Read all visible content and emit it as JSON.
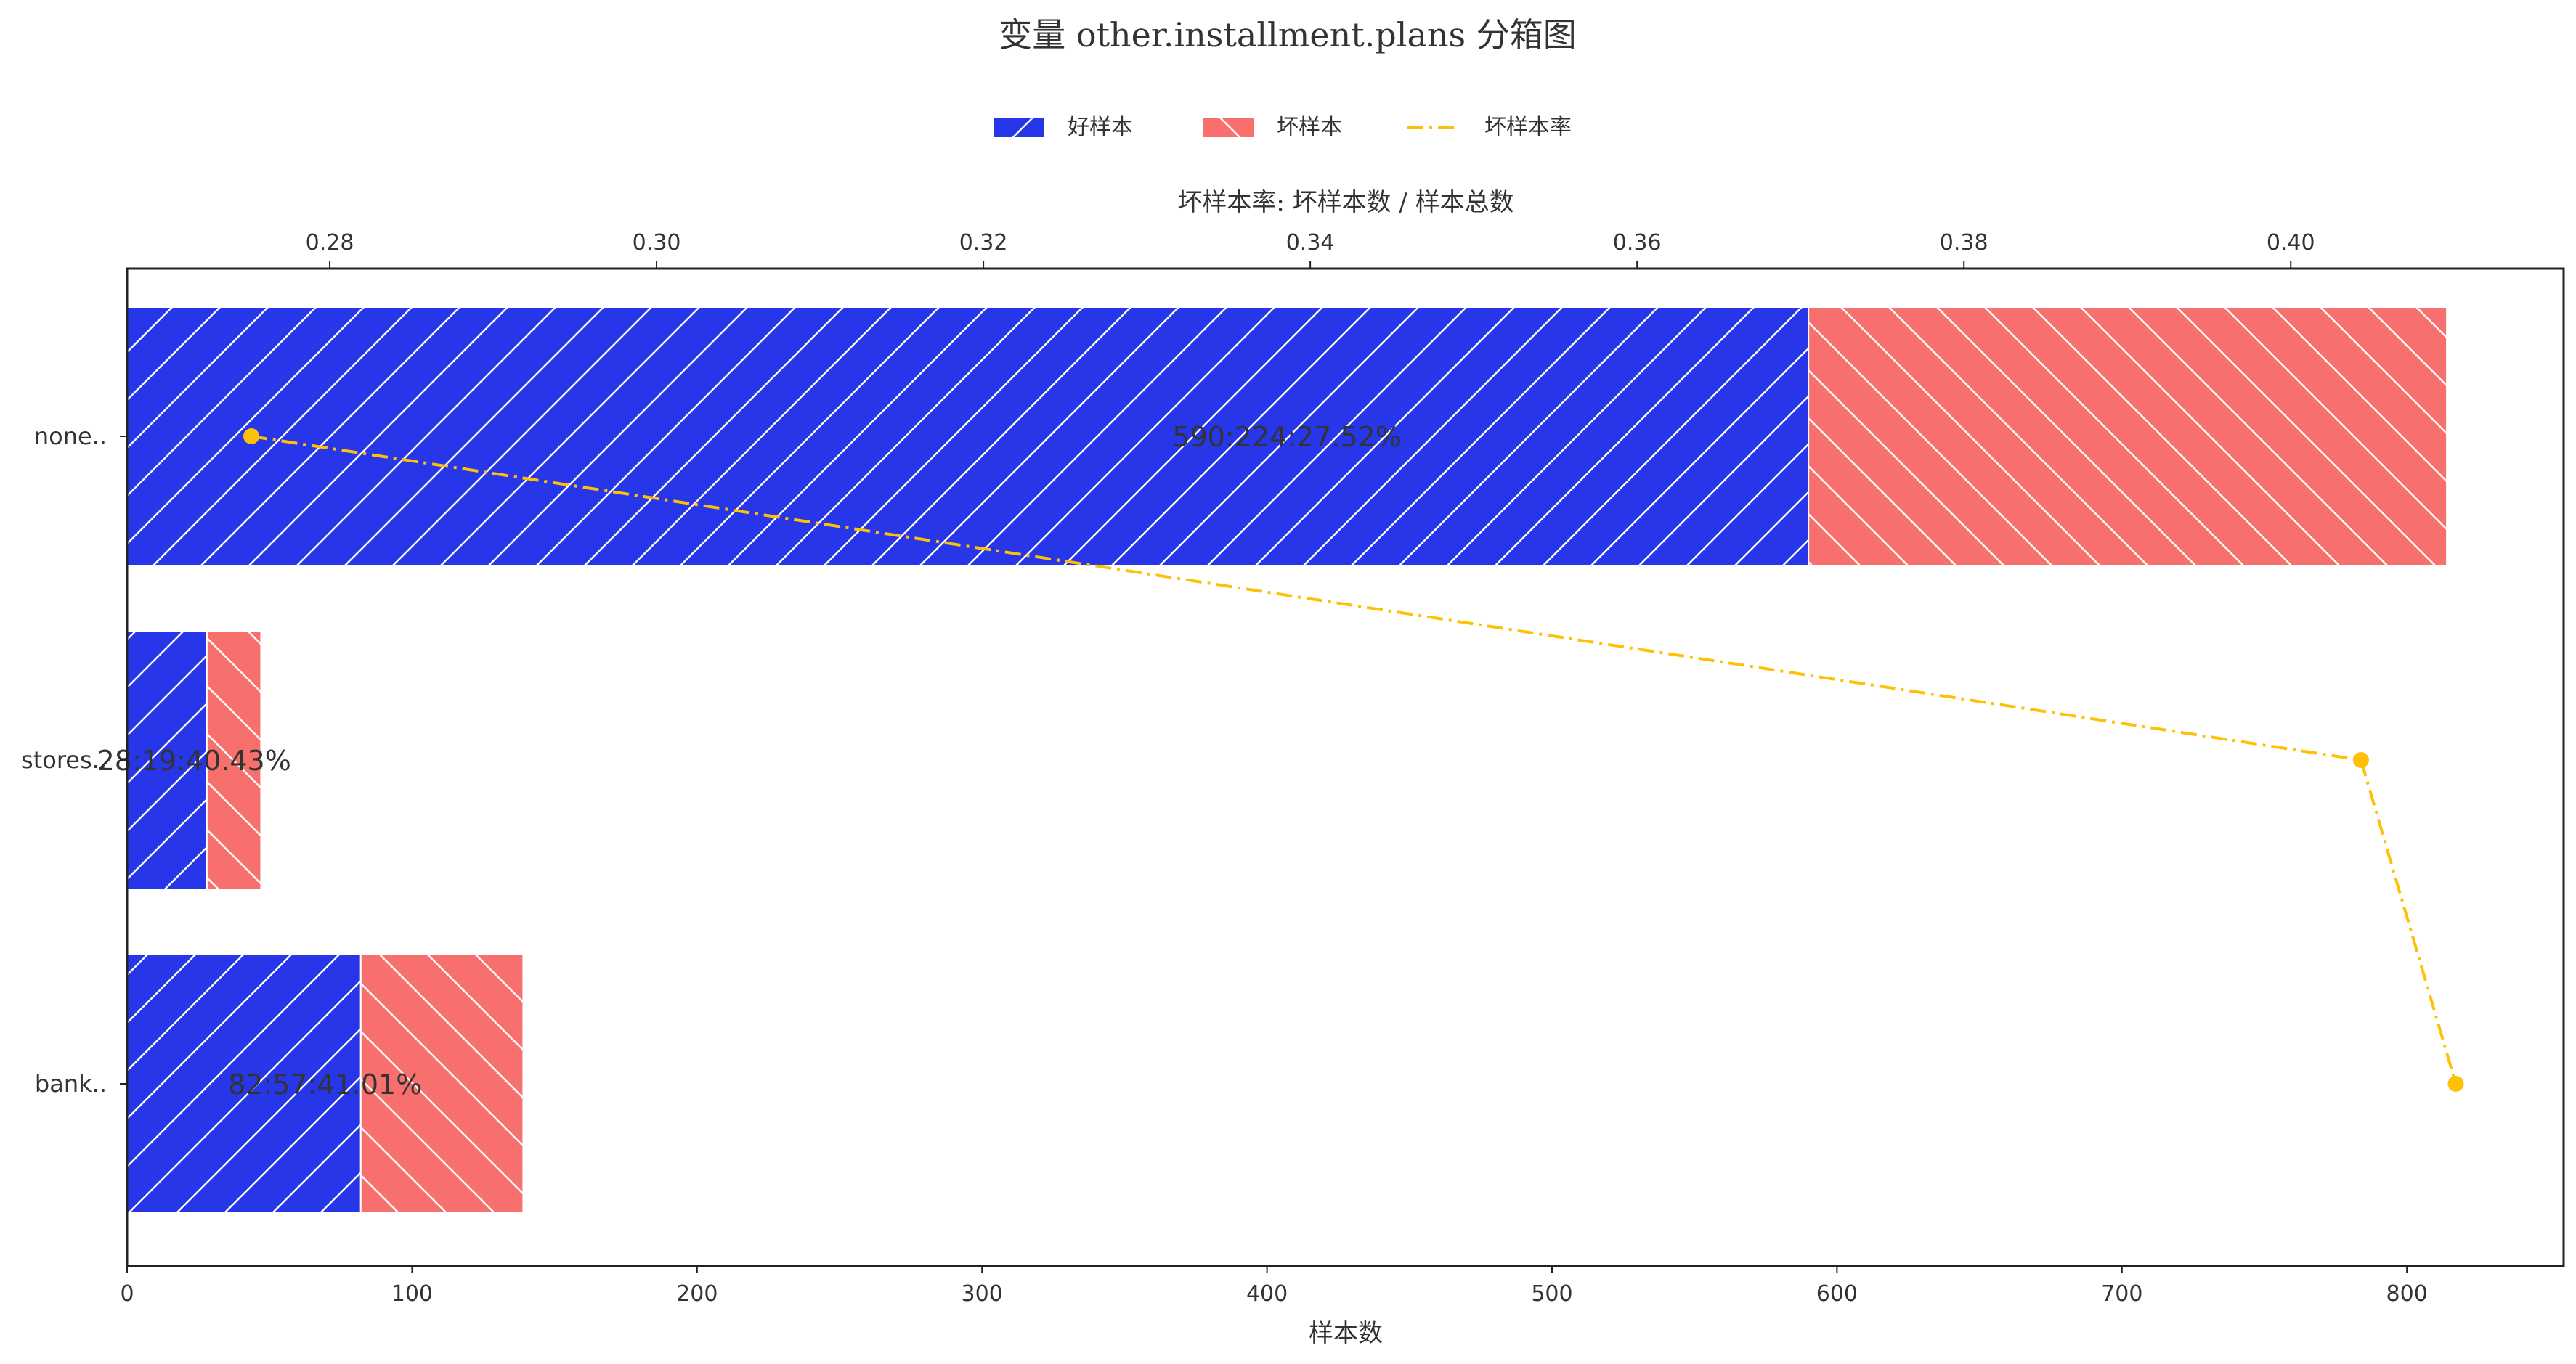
{
  "chart_data": {
    "type": "bar",
    "orientation": "horizontal",
    "stacked": true,
    "title": "变量 other.installment.plans 分箱图",
    "xlabel": "样本数",
    "top_xlabel": "坏样本率: 坏样本数 / 样本总数",
    "categories": [
      "none..",
      "stores..",
      "bank.."
    ],
    "series": [
      {
        "name": "好样本",
        "values": [
          590,
          28,
          82
        ],
        "color": "#2736e8",
        "hatch": "/"
      },
      {
        "name": "坏样本",
        "values": [
          224,
          19,
          57
        ],
        "color": "#f8706e",
        "hatch": "\\"
      }
    ],
    "rate_series": {
      "name": "坏样本率",
      "values": [
        0.2752,
        0.4043,
        0.4101
      ],
      "color": "#ffc107",
      "line_style": "dash-dot"
    },
    "bar_labels": [
      "590:224:27.52%",
      "28:19:40.43%",
      "82:57:41.01%"
    ],
    "xlim": [
      0,
      855
    ],
    "xticks": [
      0,
      100,
      200,
      300,
      400,
      500,
      600,
      700,
      800
    ],
    "top_xlim": [
      0.2676,
      0.4167
    ],
    "top_xticks": [
      "0.28",
      "0.30",
      "0.32",
      "0.34",
      "0.36",
      "0.38",
      "0.40"
    ],
    "legend_position": "top-center",
    "grid": false
  }
}
